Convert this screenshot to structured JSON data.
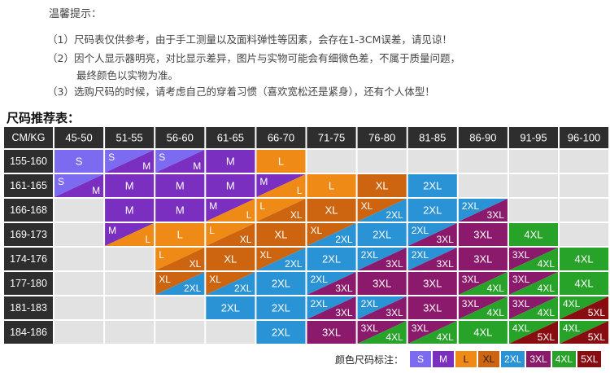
{
  "notice": {
    "title": "温馨提示：",
    "lines": [
      "（1）尺码表仅供参考，由于手工测量以及面料弹性等因素，会存在1-3CM误差，请见谅！",
      "（2）因个人显示器明亮，对比显示差异，图片与实物可能会有细微色差，不属于质量问题，",
      "最终颜色以实物为准。",
      "（3）选购尺码的时候，请考虑自己的穿着习惯（喜欢宽松还是紧身），还有个人体型！"
    ]
  },
  "table": {
    "title": "尺码推荐表：",
    "corner": "CM/KG",
    "weights": [
      "45-50",
      "51-55",
      "56-60",
      "61-65",
      "66-70",
      "71-75",
      "76-80",
      "81-85",
      "86-90",
      "91-95",
      "96-100"
    ],
    "heights": [
      "155-160",
      "161-165",
      "166-168",
      "169-173",
      "174-176",
      "177-180",
      "181-183",
      "184-186"
    ],
    "cells": [
      [
        "S",
        "S/M",
        "S/M",
        "M",
        "L",
        "",
        "",
        "",
        "",
        "",
        ""
      ],
      [
        "S/M",
        "M",
        "M",
        "M",
        "M/L",
        "L",
        "XL",
        "2XL",
        "",
        "",
        ""
      ],
      [
        "",
        "M",
        "M",
        "M/L",
        "L/XL",
        "XL",
        "XL/2XL",
        "2XL",
        "2XL/3XL",
        "",
        ""
      ],
      [
        "",
        "M/L",
        "L",
        "L/XL",
        "XL",
        "XL/2XL",
        "2XL",
        "2XL/3XL",
        "3XL",
        "4XL",
        ""
      ],
      [
        "",
        "",
        "L/XL",
        "XL",
        "XL/2XL",
        "2XL",
        "2XL/3XL",
        "2XL/3XL",
        "3XL",
        "3XL/4XL",
        "4XL"
      ],
      [
        "",
        "",
        "XL/2XL",
        "XL/2XL",
        "2XL",
        "2XL/3XL",
        "3XL",
        "3XL",
        "3XL/4XL",
        "3XL/4XL",
        "4XL"
      ],
      [
        "",
        "",
        "",
        "2XL",
        "2XL",
        "2XL/3XL",
        "2XL/3XL",
        "3XL",
        "3XL/4XL",
        "3XL/4XL",
        "4XL/5XL"
      ],
      [
        "",
        "",
        "",
        "",
        "2XL",
        "3XL",
        "3XL/4XL",
        "3XL/4XL",
        "4XL",
        "4XL/5XL",
        "4XL/5XL"
      ]
    ]
  },
  "legend": {
    "label": "颜色尺码标注：",
    "sizes": [
      "S",
      "M",
      "L",
      "XL",
      "2XL",
      "3XL",
      "4XL",
      "5XL"
    ]
  },
  "colors": {
    "S": "#7c6bf0",
    "M": "#7a2fc0",
    "L": "#f08a16",
    "XL": "#cc6410",
    "2XL": "#2a93d6",
    "3XL": "#8c1a6c",
    "4XL": "#28a32a",
    "5XL": "#880c10",
    "header_bg": "#2e2e2e",
    "empty_cell": "#e2e2e2"
  }
}
